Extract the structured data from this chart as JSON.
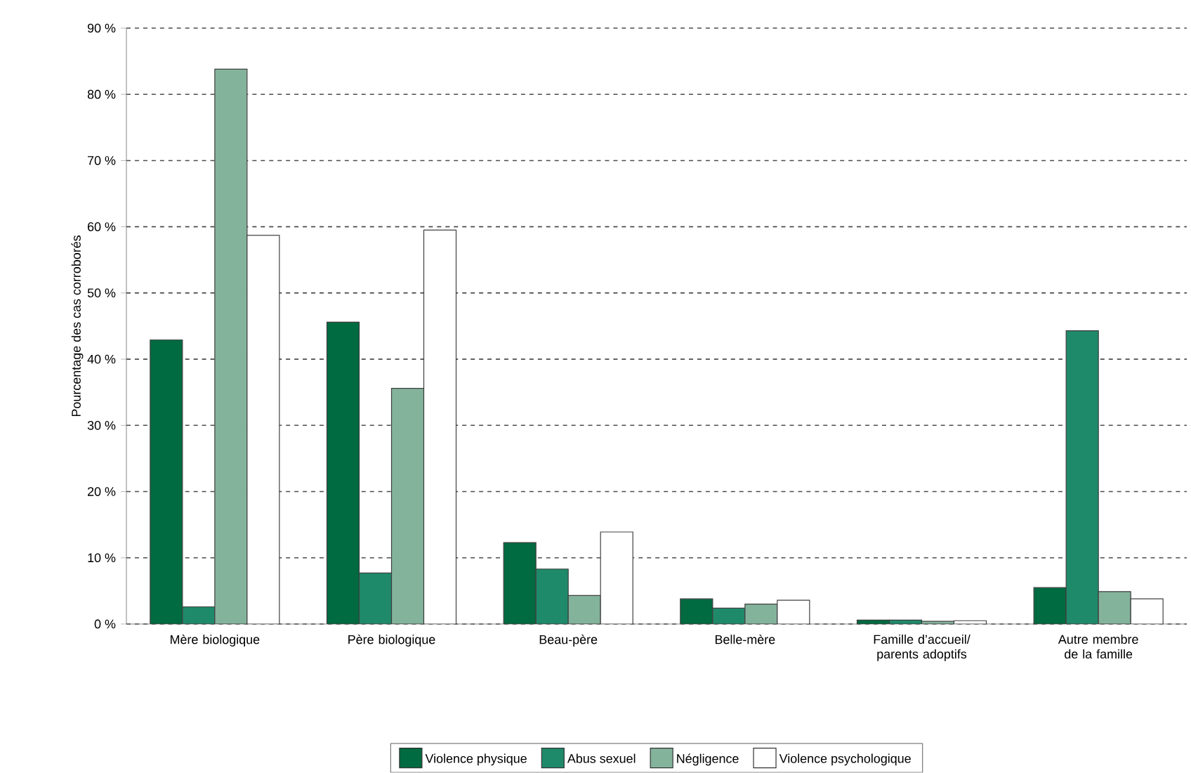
{
  "chart_data": {
    "type": "bar",
    "ylabel": "Pourcentage des cas corroborés",
    "categories": [
      "Mère biologique",
      "Père biologique",
      "Beau-père",
      "Belle-mère",
      "Famille d’accueil/ parents adoptifs",
      "Autre membre de la famille"
    ],
    "series": [
      {
        "name": "Violence physique",
        "color": "#006a40",
        "values": [
          42.9,
          45.6,
          12.3,
          3.8,
          0.6,
          5.5
        ]
      },
      {
        "name": "Abus sexuel",
        "color": "#1f8a6a",
        "values": [
          2.6,
          7.7,
          8.3,
          2.4,
          0.6,
          44.3
        ]
      },
      {
        "name": "Négligence",
        "color": "#84b39c",
        "values": [
          83.8,
          35.6,
          4.3,
          3.0,
          0.4,
          4.9
        ]
      },
      {
        "name": "Violence psychologique",
        "color": "#ffffff",
        "values": [
          58.7,
          59.5,
          13.9,
          3.6,
          0.5,
          3.8
        ]
      }
    ],
    "ylim": [
      0,
      90
    ],
    "yticks": [
      {
        "value": 0,
        "label": "0 %"
      },
      {
        "value": 10,
        "label": "10 %"
      },
      {
        "value": 20,
        "label": "20 %"
      },
      {
        "value": 30,
        "label": "30 %"
      },
      {
        "value": 40,
        "label": "40 %"
      },
      {
        "value": 50,
        "label": "50 %"
      },
      {
        "value": 60,
        "label": "60 %"
      },
      {
        "value": 70,
        "label": "70 %"
      },
      {
        "value": 80,
        "label": "80 %"
      },
      {
        "value": 90,
        "label": "90 %"
      }
    ],
    "grid": "y",
    "legend": "bottom"
  }
}
